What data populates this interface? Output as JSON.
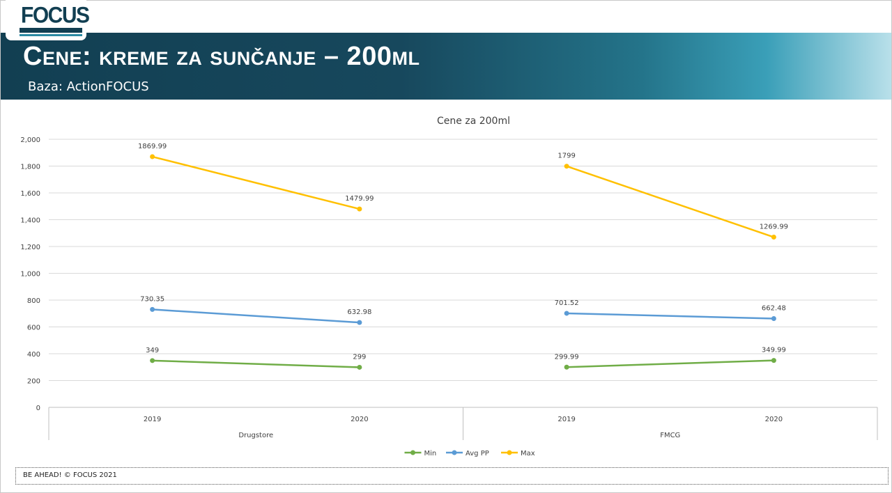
{
  "header": {
    "logo_text": "FOCUS",
    "title": "Cene: kreme za sunčanje – 200ml",
    "subtitle": "Baza: ActionFOCUS"
  },
  "footer": {
    "text": "BE AHEAD! © FOCUS 2021"
  },
  "colors": {
    "min": "#70ad47",
    "avg": "#5b9bd5",
    "max": "#ffc000",
    "banner_dark": "#123f52"
  },
  "chart_data": {
    "type": "line",
    "title": "Cene za 200ml",
    "categories": [
      "2019",
      "2020",
      "2019",
      "2020"
    ],
    "groups": [
      {
        "label": "Drugstore",
        "categories": [
          "2019",
          "2020"
        ]
      },
      {
        "label": "FMCG",
        "categories": [
          "2019",
          "2020"
        ]
      }
    ],
    "ylim": [
      0,
      2000
    ],
    "yticks": [
      0,
      200,
      400,
      600,
      800,
      1000,
      1200,
      1400,
      1600,
      1800,
      2000
    ],
    "ytick_labels": [
      "0",
      "200",
      "400",
      "600",
      "800",
      "1,000",
      "1,200",
      "1,400",
      "1,600",
      "1,800",
      "2,000"
    ],
    "grid": true,
    "legend_position": "bottom",
    "series": [
      {
        "name": "Min",
        "color": "#70ad47",
        "segments": [
          {
            "values": [
              349,
              299
            ],
            "labels": [
              "349",
              "299"
            ]
          },
          {
            "values": [
              299.99,
              349.99
            ],
            "labels": [
              "299.99",
              "349.99"
            ]
          }
        ]
      },
      {
        "name": "Avg PP",
        "color": "#5b9bd5",
        "segments": [
          {
            "values": [
              730.35,
              632.98
            ],
            "labels": [
              "730.35",
              "632.98"
            ]
          },
          {
            "values": [
              701.52,
              662.48
            ],
            "labels": [
              "701.52",
              "662.48"
            ]
          }
        ]
      },
      {
        "name": "Max",
        "color": "#ffc000",
        "segments": [
          {
            "values": [
              1869.99,
              1479.99
            ],
            "labels": [
              "1869.99",
              "1479.99"
            ]
          },
          {
            "values": [
              1799,
              1269.99
            ],
            "labels": [
              "1799",
              "1269.99"
            ]
          }
        ]
      }
    ]
  }
}
